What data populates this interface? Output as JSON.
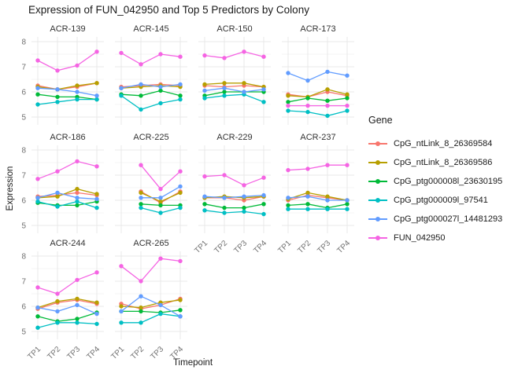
{
  "chart_data": {
    "type": "line",
    "title": "Expression of FUN_042950 and Top 5 Predictors by Colony",
    "xlabel": "Timepoint",
    "ylabel": "Expression",
    "legend_title": "Gene",
    "x": [
      "TP1",
      "TP2",
      "TP3",
      "TP4"
    ],
    "ylim": [
      5,
      8
    ],
    "yticks": [
      5,
      6,
      7,
      8
    ],
    "grid": "on",
    "legend_position": "right",
    "genes": [
      {
        "name": "CpG_ntLink_8_26369584",
        "color": "#F8766D"
      },
      {
        "name": "CpG_ntLink_8_26369586",
        "color": "#B79F00"
      },
      {
        "name": "CpG_ptg000008l_23630195",
        "color": "#00BA38"
      },
      {
        "name": "CpG_ptg000009l_97541",
        "color": "#00BFC4"
      },
      {
        "name": "CpG_ptg000027l_14481293",
        "color": "#619CFF"
      },
      {
        "name": "FUN_042950",
        "color": "#F564E3"
      }
    ],
    "facets": [
      {
        "colony": "ACR-139",
        "values": [
          [
            6.25,
            6.1,
            6.2,
            6.35
          ],
          [
            6.2,
            6.1,
            6.25,
            6.35
          ],
          [
            5.9,
            5.8,
            5.8,
            5.7
          ],
          [
            5.5,
            5.6,
            5.7,
            5.7
          ],
          [
            6.15,
            6.1,
            6.0,
            5.85
          ],
          [
            7.25,
            6.85,
            7.05,
            7.6
          ]
        ]
      },
      {
        "colony": "ACR-145",
        "values": [
          [
            6.2,
            6.25,
            6.3,
            6.25
          ],
          [
            6.15,
            6.2,
            6.25,
            6.2
          ],
          [
            5.9,
            5.85,
            6.05,
            5.85
          ],
          [
            5.85,
            5.3,
            5.55,
            5.7
          ],
          [
            6.15,
            6.3,
            6.2,
            6.3
          ],
          [
            7.55,
            7.1,
            7.5,
            7.4
          ]
        ]
      },
      {
        "colony": "ACR-150",
        "values": [
          [
            6.25,
            6.2,
            6.25,
            6.2
          ],
          [
            6.3,
            6.35,
            6.35,
            6.2
          ],
          [
            5.85,
            6.0,
            6.0,
            6.0
          ],
          [
            5.75,
            5.85,
            5.9,
            5.6
          ],
          [
            6.05,
            6.15,
            6.0,
            6.1
          ],
          [
            7.45,
            7.35,
            7.6,
            7.4
          ]
        ]
      },
      {
        "colony": "ACR-173",
        "values": [
          [
            5.9,
            5.8,
            6.0,
            5.85
          ],
          [
            5.85,
            5.8,
            6.1,
            5.9
          ],
          [
            5.6,
            5.75,
            5.65,
            5.75
          ],
          [
            5.25,
            5.2,
            5.05,
            5.25
          ],
          [
            6.75,
            6.45,
            6.8,
            6.65
          ],
          [
            5.45,
            5.45,
            5.45,
            5.45
          ]
        ]
      },
      {
        "colony": "ACR-186",
        "values": [
          [
            6.15,
            6.2,
            6.3,
            6.2
          ],
          [
            6.1,
            6.15,
            6.45,
            6.25
          ],
          [
            5.9,
            5.8,
            5.8,
            5.95
          ],
          [
            5.95,
            5.75,
            5.95,
            5.7
          ],
          [
            6.1,
            6.3,
            6.1,
            6.05
          ],
          [
            6.85,
            7.15,
            7.55,
            7.35
          ]
        ]
      },
      {
        "colony": "ACR-225",
        "values": [
          [
            null,
            6.35,
            5.9,
            6.35
          ],
          [
            null,
            6.3,
            5.95,
            6.3
          ],
          [
            null,
            5.85,
            5.8,
            5.8
          ],
          [
            null,
            5.7,
            5.5,
            5.7
          ],
          [
            null,
            6.1,
            6.1,
            6.55
          ],
          [
            null,
            7.4,
            6.45,
            7.15
          ]
        ]
      },
      {
        "colony": "ACR-229",
        "values": [
          [
            6.1,
            6.1,
            6.0,
            6.15
          ],
          [
            6.1,
            6.15,
            6.1,
            6.15
          ],
          [
            5.85,
            5.7,
            5.7,
            5.85
          ],
          [
            5.6,
            5.5,
            5.55,
            5.45
          ],
          [
            6.15,
            6.1,
            6.15,
            6.2
          ],
          [
            6.95,
            7.0,
            6.6,
            6.9
          ]
        ]
      },
      {
        "colony": "ACR-237",
        "values": [
          [
            6.0,
            6.2,
            6.1,
            6.0
          ],
          [
            6.05,
            6.3,
            6.15,
            6.0
          ],
          [
            5.8,
            5.85,
            5.7,
            5.85
          ],
          [
            5.65,
            5.65,
            5.65,
            5.65
          ],
          [
            6.1,
            6.15,
            6.0,
            6.0
          ],
          [
            7.2,
            7.25,
            7.4,
            7.4
          ]
        ]
      },
      {
        "colony": "ACR-244",
        "values": [
          [
            5.9,
            6.15,
            6.25,
            6.1
          ],
          [
            5.95,
            6.2,
            6.3,
            6.15
          ],
          [
            5.6,
            5.4,
            5.5,
            5.75
          ],
          [
            5.15,
            5.35,
            5.35,
            5.3
          ],
          [
            5.95,
            5.8,
            6.05,
            5.7
          ],
          [
            6.75,
            6.5,
            7.05,
            7.35
          ]
        ]
      },
      {
        "colony": "ACR-265",
        "values": [
          [
            6.1,
            5.9,
            6.05,
            6.3
          ],
          [
            6.0,
            5.95,
            6.15,
            6.25
          ],
          [
            5.8,
            5.8,
            5.75,
            5.85
          ],
          [
            5.35,
            5.35,
            5.7,
            5.6
          ],
          [
            5.8,
            6.4,
            6.05,
            5.6
          ],
          [
            7.6,
            7.0,
            7.9,
            7.8
          ]
        ]
      }
    ]
  }
}
